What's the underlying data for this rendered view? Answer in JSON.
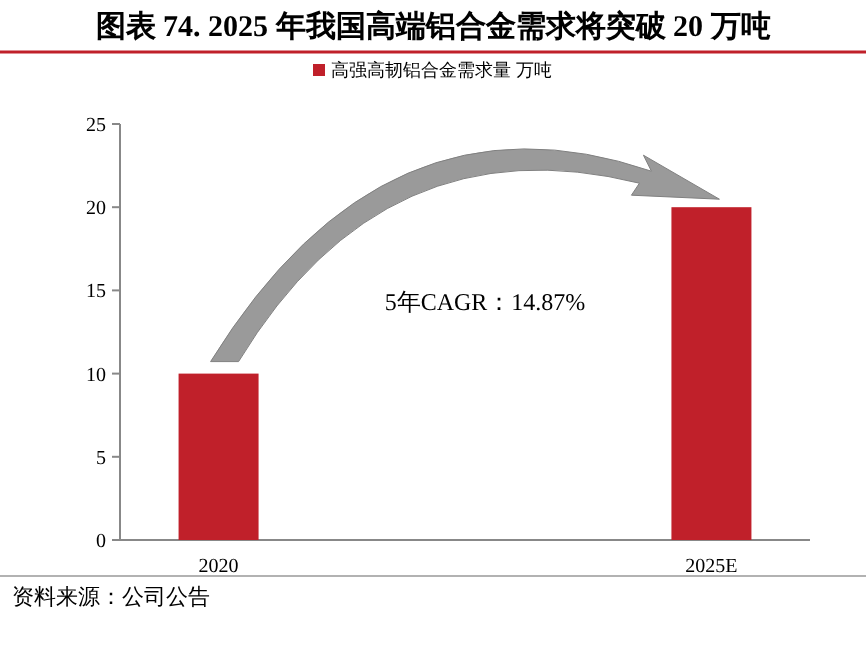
{
  "chart_data": {
    "type": "bar",
    "title": "图表 74. 2025 年我国高端铝合金需求将突破 20 万吨",
    "categories": [
      "2020",
      "2025E"
    ],
    "series": [
      {
        "name": "高强高韧铝合金需求量 万吨",
        "color": "#c0202a",
        "values": [
          10,
          20
        ]
      }
    ],
    "ylim": [
      0,
      25
    ],
    "yticks": [
      0,
      5,
      10,
      15,
      20,
      25
    ],
    "grid": false,
    "legend": "top",
    "annotations": [
      "5年CAGR：14.87%",
      "资料来源：公司公告"
    ]
  }
}
